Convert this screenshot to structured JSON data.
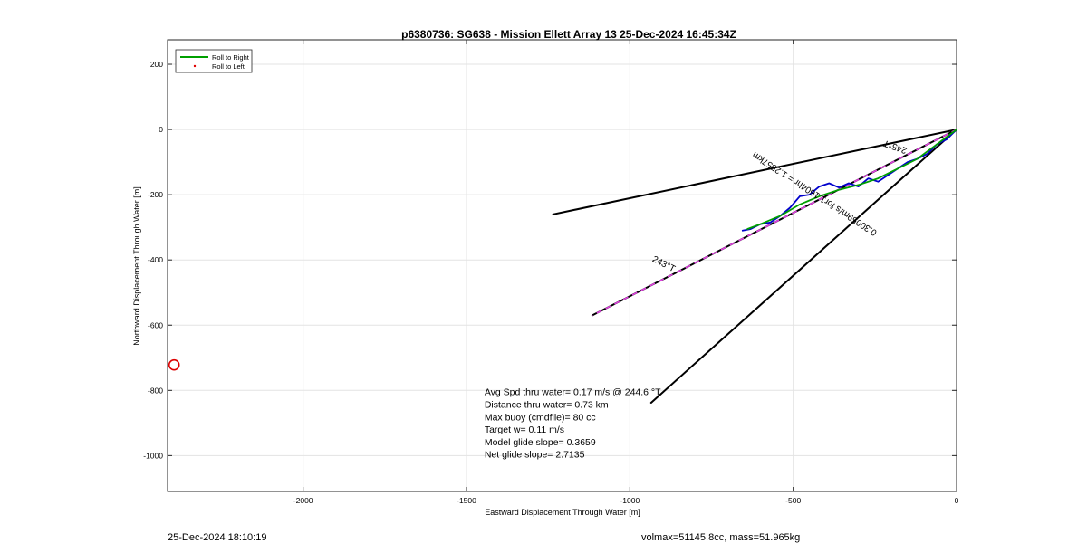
{
  "chart_data": {
    "type": "line",
    "title": "p6380736: SG638 - Mission Ellett Array 13 25-Dec-2024 16:45:34Z",
    "xlabel": "Eastward Displacement Through Water [m]",
    "ylabel": "Northward Displacement Through Water [m]",
    "xlim": [
      -2415,
      0
    ],
    "ylim": [
      -1110,
      275
    ],
    "xticks": [
      -2000,
      -1500,
      -1000,
      -500,
      0
    ],
    "xtick_labels": [
      "-2000",
      "-1500",
      "-1000",
      "-500",
      "0"
    ],
    "yticks": [
      200,
      0,
      -200,
      -400,
      -600,
      -800,
      -1000
    ],
    "ytick_labels": [
      "200",
      "0",
      "-200",
      "-400",
      "-600",
      "-800",
      "-1000"
    ],
    "grid": true,
    "legend": {
      "placement": "top-left",
      "entries": [
        {
          "label": "Roll to Right",
          "color": "#00a000",
          "style": "line"
        },
        {
          "label": "Roll to Left",
          "color": "#e00000",
          "style": "dot"
        }
      ]
    },
    "series": [
      {
        "key": "heading_upper",
        "color": "#000000",
        "style": "solid",
        "x": [
          0,
          -1235
        ],
        "y": [
          0,
          -260
        ]
      },
      {
        "key": "heading_lower",
        "color": "#000000",
        "style": "solid",
        "x": [
          0,
          -935
        ],
        "y": [
          0,
          -838
        ]
      },
      {
        "key": "heading_243_base",
        "color": "#000000",
        "style": "solid",
        "x": [
          0,
          -1115
        ],
        "y": [
          0,
          -570
        ]
      },
      {
        "key": "heading_243_dash",
        "color": "#e040e0",
        "style": "dashed",
        "x": [
          0,
          -1115
        ],
        "y": [
          0,
          -570
        ]
      },
      {
        "key": "track_blue",
        "color": "#0000cc",
        "style": "solid",
        "x": [
          0,
          -30,
          -60,
          -90,
          -120,
          -150,
          -180,
          -210,
          -240,
          -270,
          -300,
          -330,
          -360,
          -390,
          -420,
          -450,
          -480,
          -510,
          -540,
          -570,
          -600,
          -630,
          -655
        ],
        "y": [
          0,
          -30,
          -45,
          -75,
          -90,
          -100,
          -120,
          -140,
          -160,
          -150,
          -175,
          -165,
          -178,
          -165,
          -175,
          -200,
          -205,
          -240,
          -265,
          -285,
          -290,
          -305,
          -310
        ]
      },
      {
        "key": "track_green",
        "color": "#00a000",
        "style": "solid",
        "x": [
          0,
          -60,
          -120,
          -180,
          -240,
          -300,
          -360,
          -420,
          -480,
          -540,
          -600,
          -640
        ],
        "y": [
          0,
          -45,
          -90,
          -120,
          -150,
          -170,
          -185,
          -205,
          -230,
          -265,
          -290,
          -305
        ]
      }
    ],
    "annotations": [
      {
        "text": "243°T",
        "x": -900,
        "y": -420,
        "rotation": 27
      },
      {
        "text": "0.30059m/s for1.1604hr = 1.2557km",
        "x": -430,
        "y": -190,
        "rotation": 213
      },
      {
        "text": "245°T",
        "x": -185,
        "y": -45,
        "rotation": 200
      }
    ],
    "marker": {
      "shape": "circle",
      "color": "#dd0000",
      "x": -2395,
      "y": -722
    },
    "summary_lines": [
      "Avg Spd thru water=  0.17 m/s @ 244.6 °T",
      "Distance thru water=  0.73 km",
      "Max buoy (cmdfile)= 80 cc",
      "Target w= 0.11 m/s",
      "Model glide slope= 0.3659",
      "Net glide slope= 2.7135"
    ],
    "summary_anchor": {
      "x": -1445,
      "y": -815
    }
  },
  "footer": {
    "left": "25-Dec-2024 18:10:19",
    "right": "volmax=51145.8cc, mass=51.965kg"
  }
}
